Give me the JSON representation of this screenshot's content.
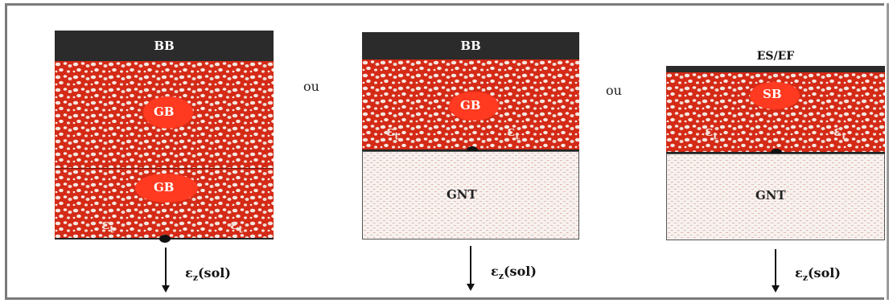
{
  "colors": {
    "asphalt": "#d42a16",
    "asphalt_light": "#ff3a20",
    "cap": "#2b2b2b",
    "unbound": "#f7f2f0"
  },
  "connector": "ou",
  "strain_symbol": "εt",
  "soil_strain": {
    "symbol": "ε",
    "subscript": "z",
    "rest": "(sol)"
  },
  "structures": [
    {
      "cap": "BB",
      "upper_layer": "GB",
      "lower_layer": "GB"
    },
    {
      "cap": "BB",
      "upper_layer": "GB",
      "lower_layer": "GNT"
    },
    {
      "cap": "ES/EF",
      "upper_layer": "SB",
      "lower_layer": "GNT"
    }
  ]
}
